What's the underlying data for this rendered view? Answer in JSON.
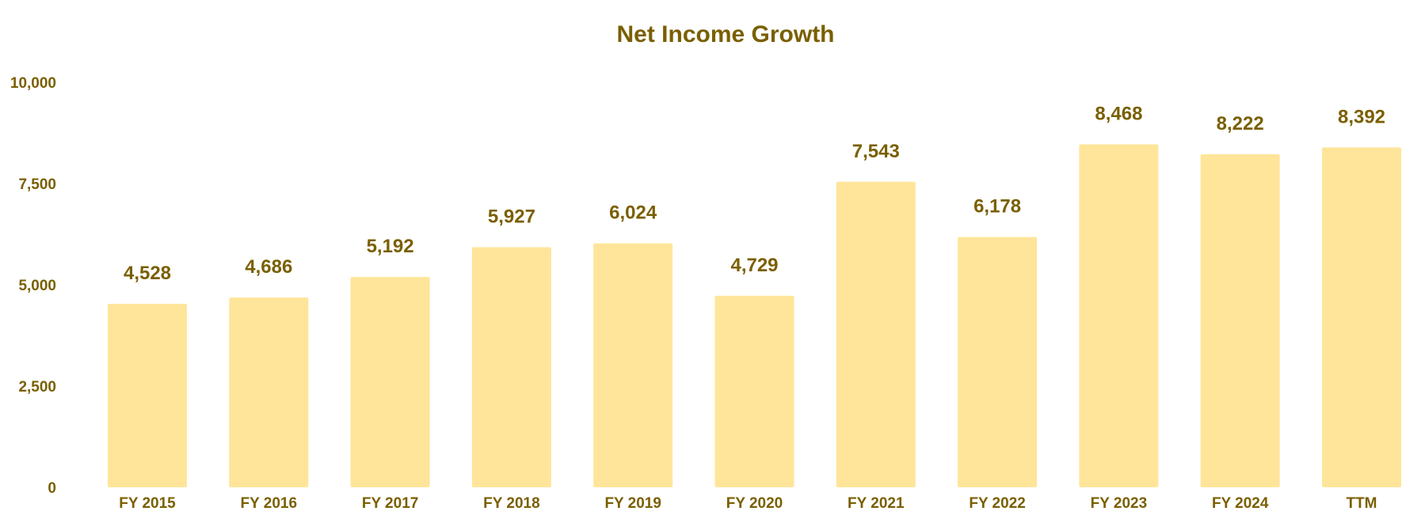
{
  "chart_data": {
    "type": "bar",
    "title": "Net Income Growth",
    "xlabel": "",
    "ylabel": "",
    "categories": [
      "FY 2015",
      "FY 2016",
      "FY 2017",
      "FY 2018",
      "FY 2019",
      "FY 2020",
      "FY 2021",
      "FY 2022",
      "FY 2023",
      "FY 2024",
      "TTM"
    ],
    "values": [
      4528,
      4686,
      5192,
      5927,
      6024,
      4729,
      7543,
      6178,
      8468,
      8222,
      8392
    ],
    "data_labels": [
      "4,528",
      "4,686",
      "5,192",
      "5,927",
      "6,024",
      "4,729",
      "7,543",
      "6,178",
      "8,468",
      "8,222",
      "8,392"
    ],
    "ylim": [
      0,
      10000
    ],
    "yticks": [
      0,
      2500,
      5000,
      7500,
      10000
    ],
    "ytick_labels": [
      "0",
      "2,500",
      "5,000",
      "7,500",
      "10,000"
    ],
    "grid": false,
    "legend": "none",
    "colors": {
      "bar": "#FEE599",
      "text": "#7A5F00"
    }
  }
}
